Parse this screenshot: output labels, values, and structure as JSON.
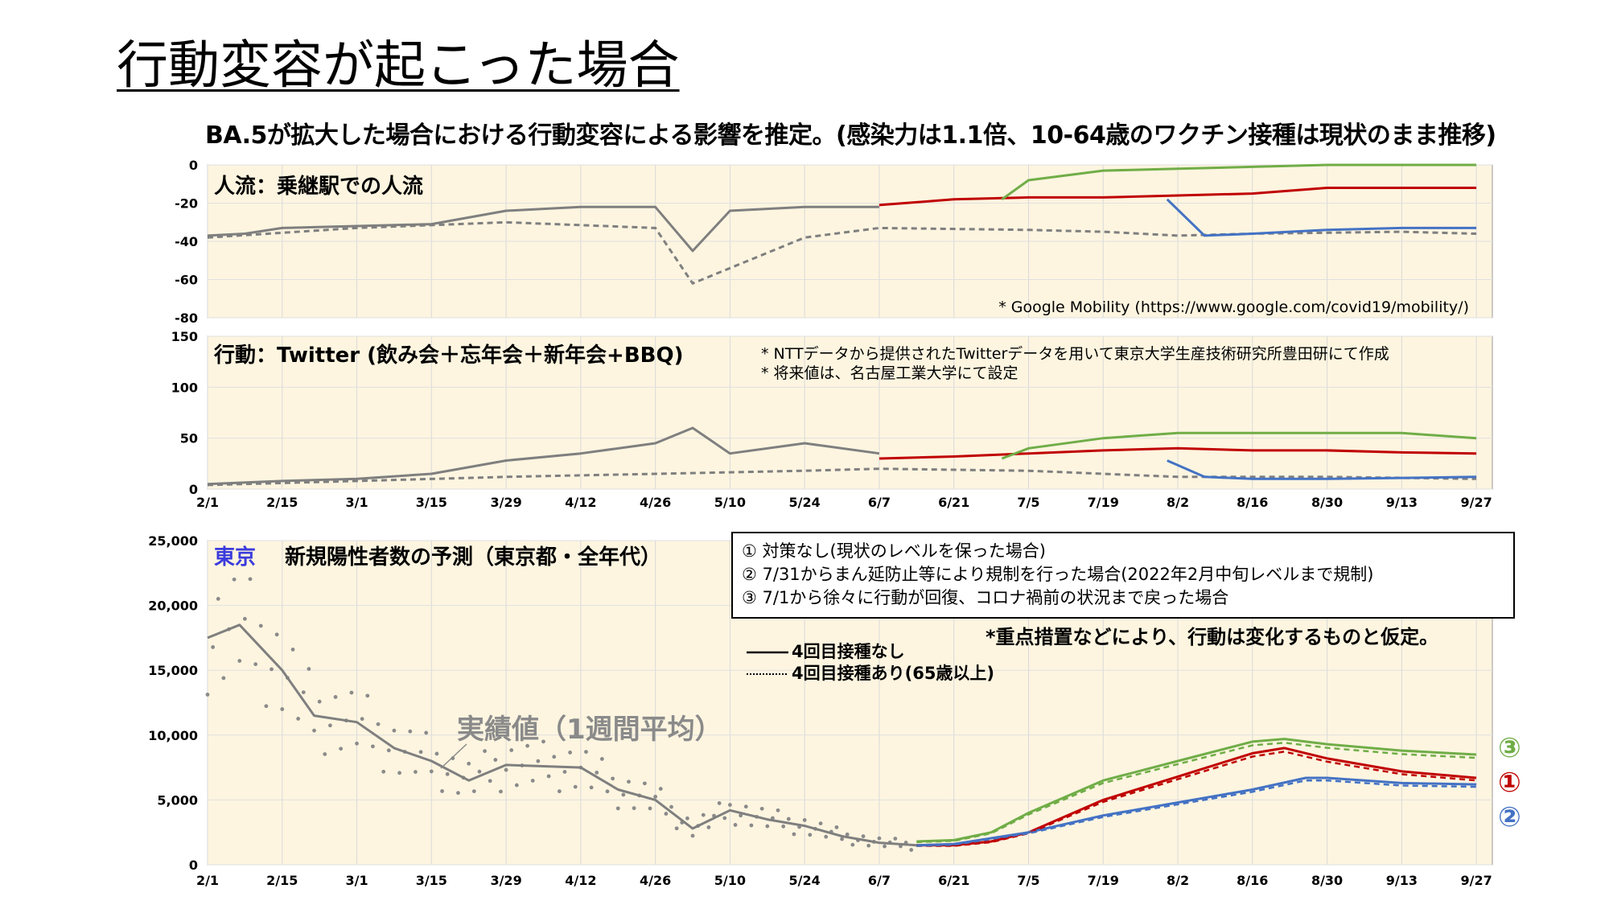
{
  "page_title": "行動変容が起こった場合",
  "subtitle": "BA.5が拡大した場合における行動変容による影響を推定。(感染力は1.1倍、10-64歳のワクチン接種は現状のまま推移)",
  "x_ticks": [
    "2/1",
    "2/15",
    "3/1",
    "3/15",
    "3/29",
    "4/12",
    "4/26",
    "5/10",
    "5/24",
    "6/7",
    "6/21",
    "7/5",
    "7/19",
    "8/2",
    "8/16",
    "8/30",
    "9/13",
    "9/27"
  ],
  "colors": {
    "grey": "#7f7f7f",
    "red": "#c00000",
    "green": "#70ad47",
    "blue": "#4472c4",
    "panel_bg": "#fdf5e0"
  },
  "panels": {
    "mobility": {
      "title": "人流：乗継駅での人流",
      "note": "* Google Mobility (https://www.google.com/covid19/mobility/)",
      "y_ticks": [
        "0",
        "-20",
        "-40",
        "-60",
        "-80"
      ]
    },
    "twitter": {
      "title": "行動：Twitter (飲み会＋忘年会＋新年会+BBQ)",
      "note1": "* NTTデータから提供されたTwitterデータを用いて東京大学生産技術研究所豊田研にて作成",
      "note2": "* 将来値は、名古屋工業大学にて設定",
      "y_ticks": [
        "150",
        "100",
        "50",
        "0"
      ]
    },
    "cases": {
      "region": "東京",
      "title": "新規陽性者数の予測（東京都・全年代）",
      "y_ticks": [
        "25,000",
        "20,000",
        "15,000",
        "10,000",
        "5,000",
        "0"
      ],
      "actual_label": "実績値（1週間平均）",
      "scenarios": [
        "① 対策なし(現状のレベルを保った場合)",
        "② 7/31からまん延防止等により規制を行った場合(2022年2月中旬レベルまで規制)",
        "③ 7/1から徐々に行動が回復、コロナ禍前の状況まで戻った場合"
      ],
      "assumption": "*重点措置などにより、行動は変化するものと仮定。",
      "legend_solid": "4回目接種なし",
      "legend_dotted": "4回目接種あり(65歳以上)",
      "markers": [
        "③",
        "①",
        "②"
      ]
    }
  },
  "chart_data": [
    {
      "type": "line",
      "title": "人流：乗継駅での人流",
      "x_range": [
        "2/1",
        "9/30"
      ],
      "ylim": [
        -80,
        0
      ],
      "series": [
        {
          "color": "#7f7f7f",
          "style": "solid",
          "x": [
            "2/1",
            "2/8",
            "2/15",
            "3/1",
            "3/15",
            "3/29",
            "4/12",
            "4/26",
            "5/3",
            "5/10",
            "5/24",
            "6/7"
          ],
          "values": [
            -37,
            -36,
            -33,
            -32,
            -31,
            -24,
            -22,
            -22,
            -45,
            -24,
            -22,
            -22
          ]
        },
        {
          "color": "#7f7f7f",
          "style": "dashed",
          "x": [
            "2/1",
            "3/1",
            "3/29",
            "4/26",
            "5/3",
            "5/24",
            "6/7",
            "7/5",
            "7/19",
            "8/2",
            "8/16",
            "9/13",
            "9/27"
          ],
          "values": [
            -38,
            -33,
            -30,
            -33,
            -62,
            -38,
            -33,
            -34,
            -35,
            -37,
            -36,
            -35,
            -36
          ]
        },
        {
          "color": "#c00000",
          "style": "solid",
          "x": [
            "6/7",
            "6/21",
            "7/5",
            "7/19",
            "8/2",
            "8/16",
            "8/30",
            "9/13",
            "9/27"
          ],
          "values": [
            -21,
            -18,
            -17,
            -17,
            -16,
            -15,
            -12,
            -12,
            -12
          ]
        },
        {
          "color": "#70ad47",
          "style": "solid",
          "x": [
            "6/30",
            "7/5",
            "7/19",
            "8/2",
            "8/16",
            "8/30",
            "9/13",
            "9/27"
          ],
          "values": [
            -18,
            -8,
            -3,
            -2,
            -1,
            0,
            0,
            0
          ]
        },
        {
          "color": "#4472c4",
          "style": "solid",
          "x": [
            "7/31",
            "8/7",
            "8/16",
            "8/30",
            "9/13",
            "9/27"
          ],
          "values": [
            -18,
            -37,
            -36,
            -34,
            -33,
            -33
          ]
        }
      ]
    },
    {
      "type": "line",
      "title": "行動：Twitter (飲み会＋忘年会＋新年会+BBQ)",
      "x_range": [
        "2/1",
        "9/30"
      ],
      "ylim": [
        0,
        150
      ],
      "series": [
        {
          "color": "#7f7f7f",
          "style": "solid",
          "x": [
            "2/1",
            "2/15",
            "3/1",
            "3/15",
            "3/29",
            "4/12",
            "4/26",
            "5/3",
            "5/10",
            "5/24",
            "6/7"
          ],
          "values": [
            5,
            8,
            10,
            15,
            28,
            35,
            45,
            60,
            35,
            45,
            35
          ]
        },
        {
          "color": "#7f7f7f",
          "style": "dashed",
          "x": [
            "2/1",
            "3/1",
            "3/29",
            "4/26",
            "5/24",
            "6/7",
            "7/5",
            "8/2",
            "8/30",
            "9/27"
          ],
          "values": [
            4,
            8,
            12,
            15,
            18,
            20,
            18,
            12,
            12,
            10
          ]
        },
        {
          "color": "#c00000",
          "style": "solid",
          "x": [
            "6/7",
            "6/21",
            "7/5",
            "7/19",
            "8/2",
            "8/16",
            "8/30",
            "9/13",
            "9/27"
          ],
          "values": [
            30,
            32,
            35,
            38,
            40,
            38,
            38,
            36,
            35
          ]
        },
        {
          "color": "#70ad47",
          "style": "solid",
          "x": [
            "6/30",
            "7/5",
            "7/19",
            "8/2",
            "8/16",
            "8/30",
            "9/13",
            "9/27"
          ],
          "values": [
            30,
            40,
            50,
            55,
            55,
            55,
            55,
            50
          ]
        },
        {
          "color": "#4472c4",
          "style": "solid",
          "x": [
            "7/31",
            "8/7",
            "8/16",
            "8/30",
            "9/13",
            "9/27"
          ],
          "values": [
            28,
            12,
            10,
            10,
            11,
            12
          ]
        }
      ]
    },
    {
      "type": "line",
      "title": "新規陽性者数の予測（東京都・全年代）",
      "x_range": [
        "2/1",
        "9/30"
      ],
      "ylim": [
        0,
        25000
      ],
      "series": [
        {
          "name": "実績値（1週間平均）",
          "color": "#7f7f7f",
          "style": "solid",
          "x": [
            "2/1",
            "2/7",
            "2/15",
            "2/21",
            "3/1",
            "3/8",
            "3/15",
            "3/22",
            "3/29",
            "4/5",
            "4/12",
            "4/19",
            "4/26",
            "5/3",
            "5/10",
            "5/17",
            "5/24",
            "5/31",
            "6/7",
            "6/14"
          ],
          "values": [
            17500,
            18500,
            15000,
            11500,
            11000,
            9000,
            8000,
            6500,
            7700,
            7600,
            7500,
            5800,
            5000,
            2800,
            4200,
            3500,
            3000,
            2200,
            1700,
            1500
          ]
        },
        {
          "color": "#70ad47",
          "style": "solid",
          "x": [
            "6/14",
            "6/21",
            "6/28",
            "7/5",
            "7/19",
            "8/2",
            "8/16",
            "8/22",
            "8/30",
            "9/13",
            "9/27"
          ],
          "values": [
            1800,
            1900,
            2500,
            4000,
            6500,
            8000,
            9500,
            9700,
            9300,
            8800,
            8500
          ]
        },
        {
          "color": "#c00000",
          "style": "solid",
          "x": [
            "6/14",
            "6/21",
            "6/28",
            "7/5",
            "7/19",
            "8/2",
            "8/16",
            "8/22",
            "8/30",
            "9/13",
            "9/27"
          ],
          "values": [
            1500,
            1500,
            1800,
            2500,
            5000,
            6800,
            8600,
            9000,
            8200,
            7200,
            6700
          ]
        },
        {
          "color": "#4472c4",
          "style": "solid",
          "x": [
            "6/14",
            "6/21",
            "7/5",
            "7/19",
            "8/2",
            "8/16",
            "8/26",
            "8/30",
            "9/13",
            "9/27"
          ],
          "values": [
            1500,
            1600,
            2500,
            3800,
            4800,
            5800,
            6700,
            6700,
            6300,
            6200
          ]
        }
      ]
    }
  ]
}
